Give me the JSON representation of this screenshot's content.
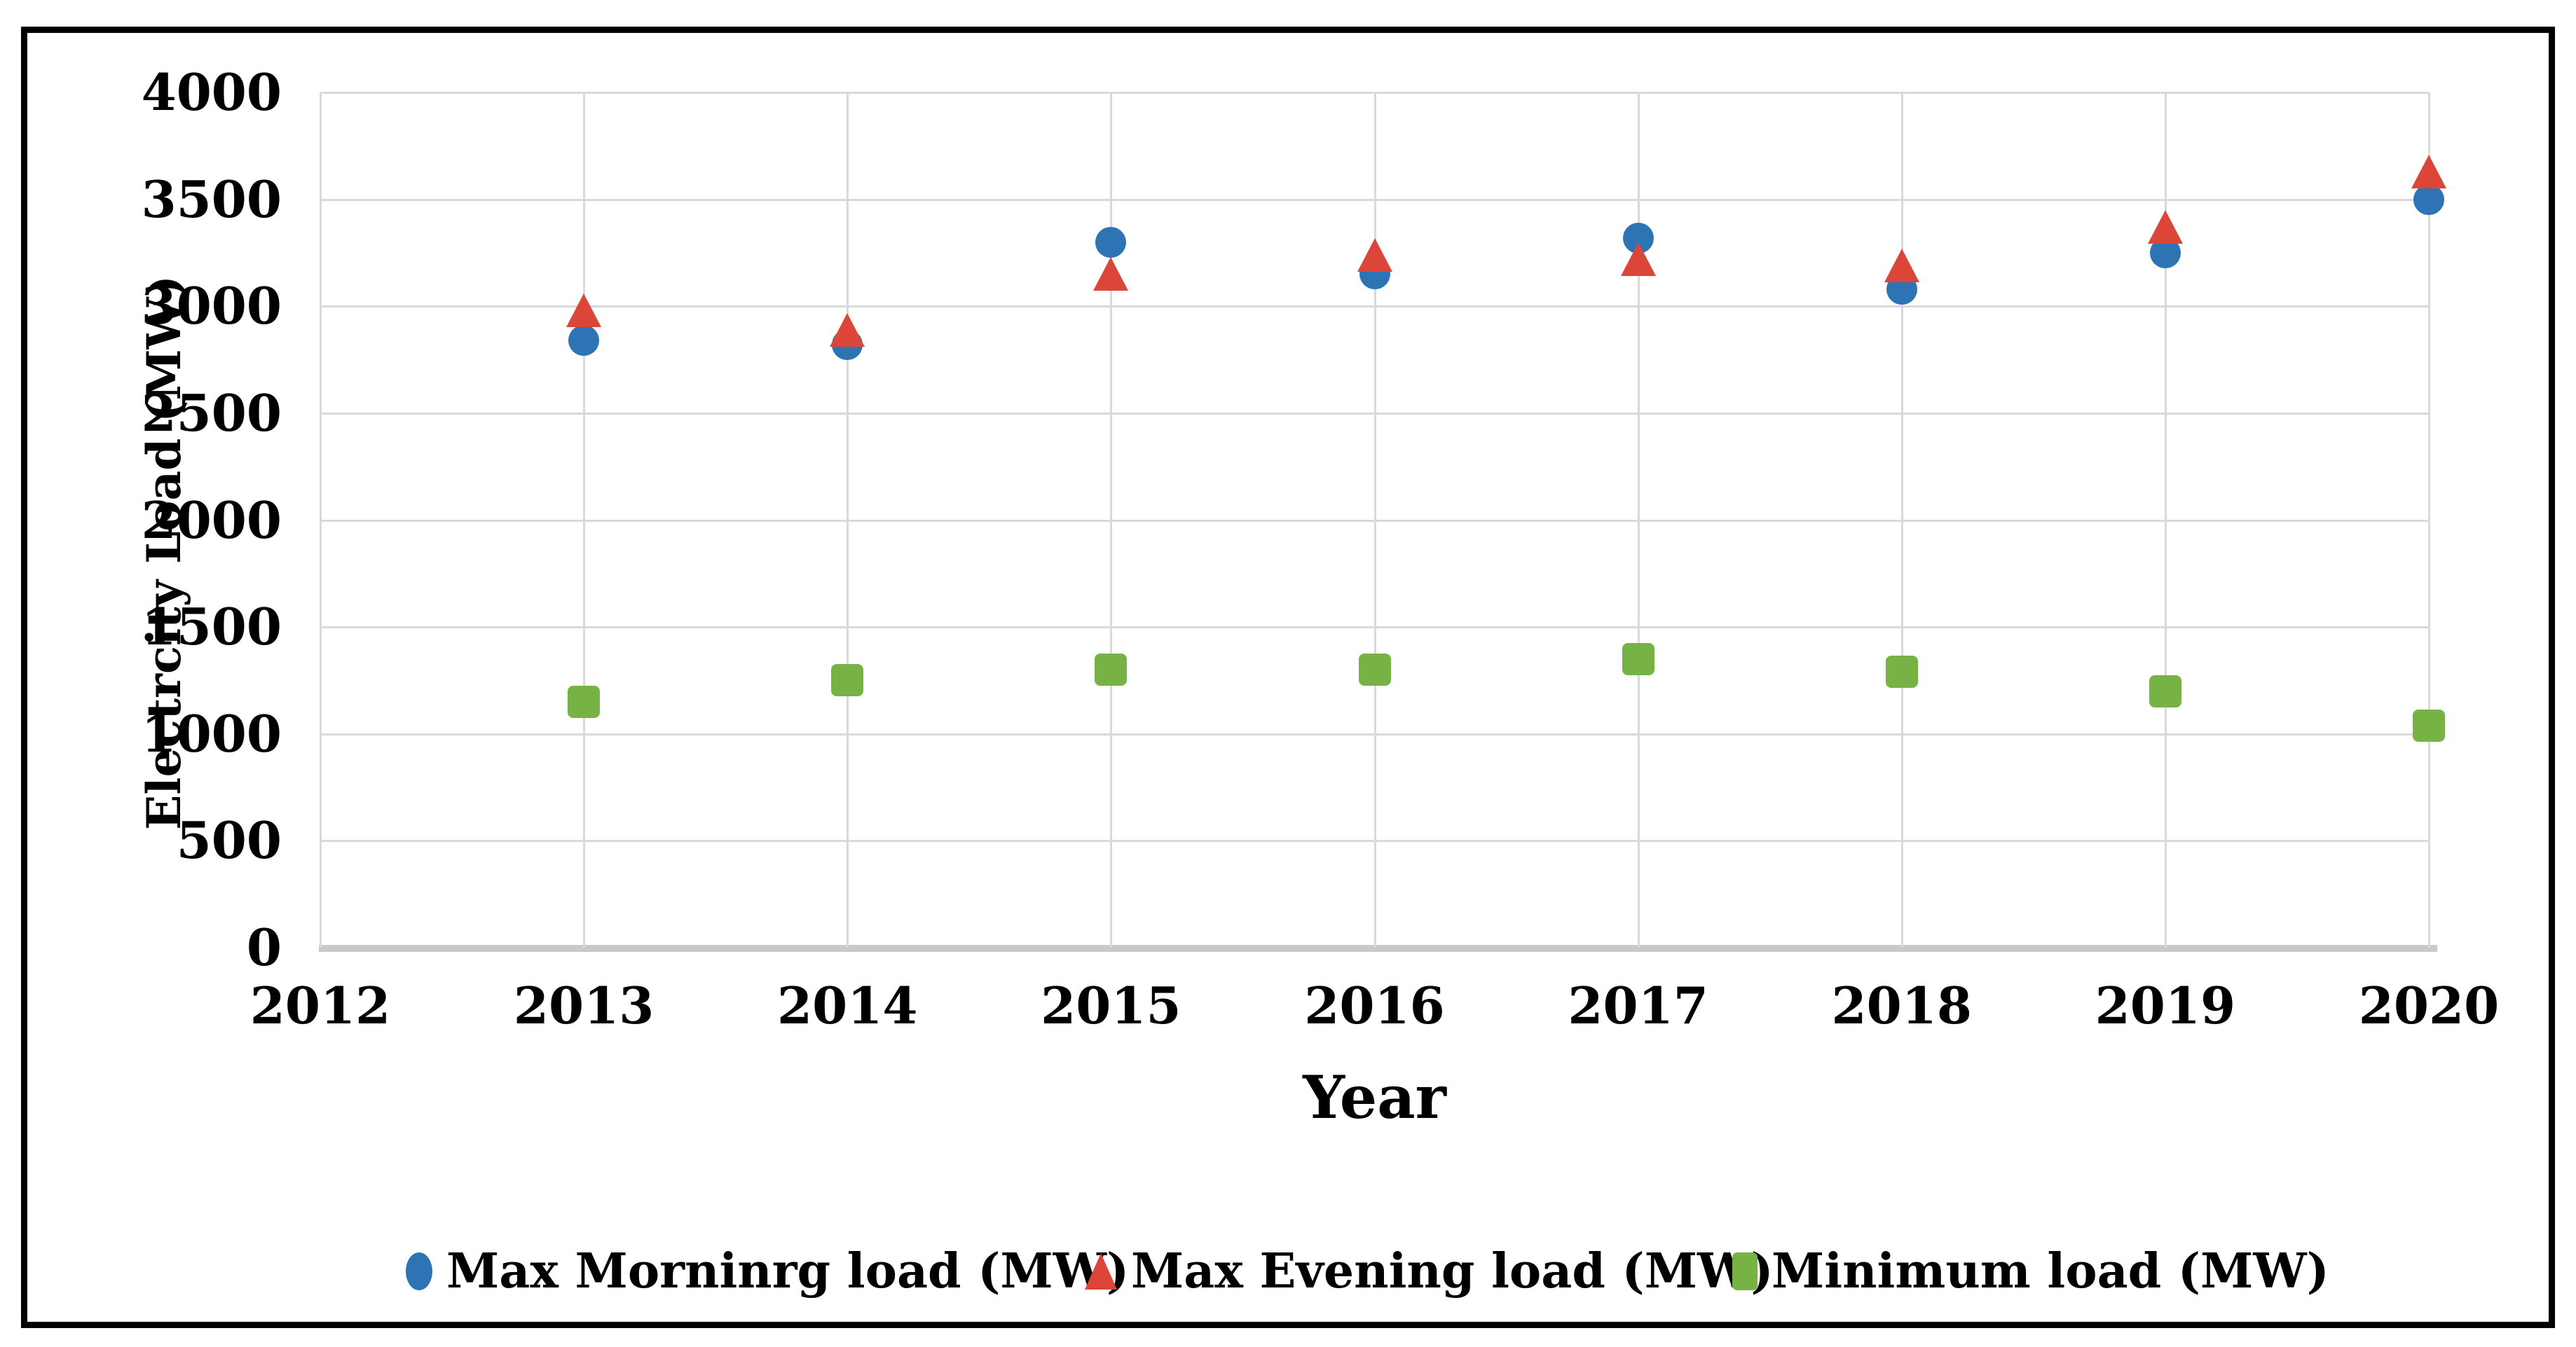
{
  "chart_data": {
    "type": "scatter",
    "title": "",
    "xlabel": "Year",
    "ylabel": "Electrcity Load (MW)",
    "x": [
      2013,
      2014,
      2015,
      2016,
      2017,
      2018,
      2019,
      2020
    ],
    "series": [
      {
        "name": "Max Morninrg load (MW)",
        "marker": "circle",
        "color": "#2E74B5",
        "values": [
          2840,
          2820,
          3300,
          3150,
          3320,
          3080,
          3250,
          3500
        ]
      },
      {
        "name": "Max Evening load (MW)",
        "marker": "triangle",
        "color": "#DC4639",
        "values": [
          2980,
          2890,
          3150,
          3240,
          3220,
          3190,
          3370,
          3630
        ]
      },
      {
        "name": "Minimum load (MW)",
        "marker": "square",
        "color": "#77B344",
        "values": [
          1150,
          1250,
          1300,
          1300,
          1350,
          1290,
          1200,
          1040
        ]
      }
    ],
    "xlim": [
      2012,
      2020
    ],
    "ylim": [
      0,
      4000
    ],
    "x_ticks": [
      "2012",
      "2013",
      "2014",
      "2015",
      "2016",
      "2017",
      "2018",
      "2019",
      "2020"
    ],
    "y_ticks": [
      "0",
      "500",
      "1000",
      "1500",
      "2000",
      "2500",
      "3000",
      "3500",
      "4000"
    ],
    "grid": true,
    "legend_position": "bottom",
    "colors": {
      "gridline": "#D9D9D9",
      "axis_line": "#C9C9C9",
      "text": "#000000",
      "frame_border": "#000000",
      "background": "#FFFFFF"
    }
  }
}
